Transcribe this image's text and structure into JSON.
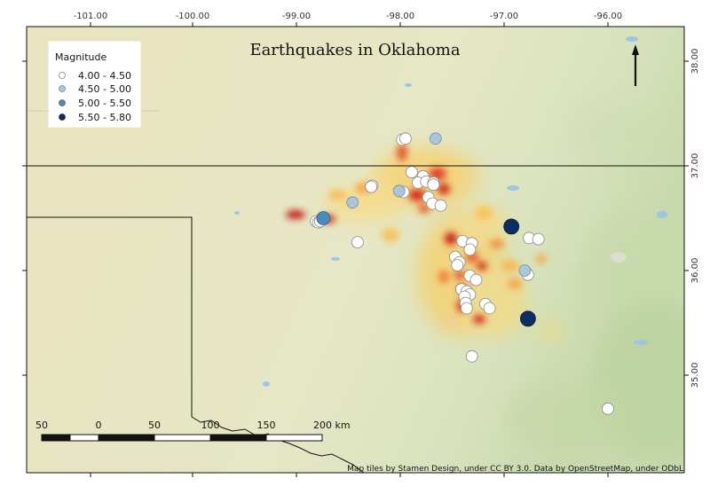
{
  "title": "Earthquakes in Oklahoma",
  "attribution": "Map tiles by Stamen Design, under CC BY 3.0. Data by OpenStreetMap, under ODbL",
  "colors": {
    "background": "#e8e6c4",
    "magnitude_4_0_4_5": "#ffffff",
    "magnitude_4_5_5_0": "#a9c6dc",
    "magnitude_5_0_5_5": "#4a8bbd",
    "magnitude_5_5_5_8": "#0b2f63"
  },
  "legend": {
    "title": "Magnitude",
    "items": [
      {
        "label": "4.00 - 4.50",
        "color": "#ffffff"
      },
      {
        "label": "4.50 - 5.00",
        "color": "#a9c6dc"
      },
      {
        "label": "5.00 - 5.50",
        "color": "#4a8bbd"
      },
      {
        "label": "5.50 - 5.80",
        "color": "#0b2f63"
      }
    ]
  },
  "axes": {
    "lon_labels": [
      "-101.00",
      "-100.00",
      "-99.00",
      "-98.00",
      "-97.00",
      "-96.00"
    ],
    "lat_labels": [
      "38.00",
      "37.00",
      "36.00",
      "35.00"
    ]
  },
  "scale_bar": {
    "labels": [
      "50",
      "0",
      "50",
      "100",
      "150",
      "200 km"
    ]
  },
  "north_arrow": "north-arrow",
  "chart_data": {
    "type": "scatter",
    "title": "Earthquakes in Oklahoma",
    "xlabel": "",
    "ylabel": "",
    "xlim": [
      -101.6,
      -95.3
    ],
    "ylim": [
      34.1,
      38.4
    ],
    "heatmap_overlay": true,
    "series": [
      {
        "name": "4.00 - 4.50",
        "points": [
          [
            -97.98,
            37.25
          ],
          [
            -97.95,
            37.26
          ],
          [
            -97.89,
            36.94
          ],
          [
            -97.78,
            36.9
          ],
          [
            -97.83,
            36.84
          ],
          [
            -97.75,
            36.85
          ],
          [
            -97.68,
            36.84
          ],
          [
            -97.68,
            36.82
          ],
          [
            -97.73,
            36.7
          ],
          [
            -97.69,
            36.64
          ],
          [
            -97.61,
            36.62
          ],
          [
            -98.27,
            36.81
          ],
          [
            -98.28,
            36.8
          ],
          [
            -97.97,
            36.75
          ],
          [
            -98.81,
            36.47
          ],
          [
            -98.79,
            36.46
          ],
          [
            -98.77,
            36.47
          ],
          [
            -98.41,
            36.27
          ],
          [
            -97.4,
            36.28
          ],
          [
            -97.31,
            36.26
          ],
          [
            -97.33,
            36.2
          ],
          [
            -97.47,
            36.13
          ],
          [
            -97.43,
            36.08
          ],
          [
            -97.45,
            36.05
          ],
          [
            -97.33,
            35.95
          ],
          [
            -97.27,
            35.91
          ],
          [
            -97.41,
            35.82
          ],
          [
            -97.36,
            35.8
          ],
          [
            -97.33,
            35.77
          ],
          [
            -97.38,
            35.75
          ],
          [
            -97.37,
            35.69
          ],
          [
            -97.36,
            35.64
          ],
          [
            -97.18,
            35.68
          ],
          [
            -97.14,
            35.64
          ],
          [
            -96.76,
            36.31
          ],
          [
            -96.67,
            36.3
          ],
          [
            -96.77,
            35.96
          ],
          [
            -97.31,
            35.18
          ],
          [
            -96.0,
            34.68
          ]
        ]
      },
      {
        "name": "4.50 - 5.00",
        "points": [
          [
            -97.66,
            37.26
          ],
          [
            -98.01,
            36.76
          ],
          [
            -98.46,
            36.65
          ],
          [
            -96.8,
            36.0
          ]
        ]
      },
      {
        "name": "5.00 - 5.50",
        "points": [
          [
            -98.74,
            36.5
          ]
        ]
      },
      {
        "name": "5.50 - 5.80",
        "points": [
          [
            -96.93,
            36.42
          ],
          [
            -96.77,
            35.54
          ]
        ]
      }
    ]
  }
}
